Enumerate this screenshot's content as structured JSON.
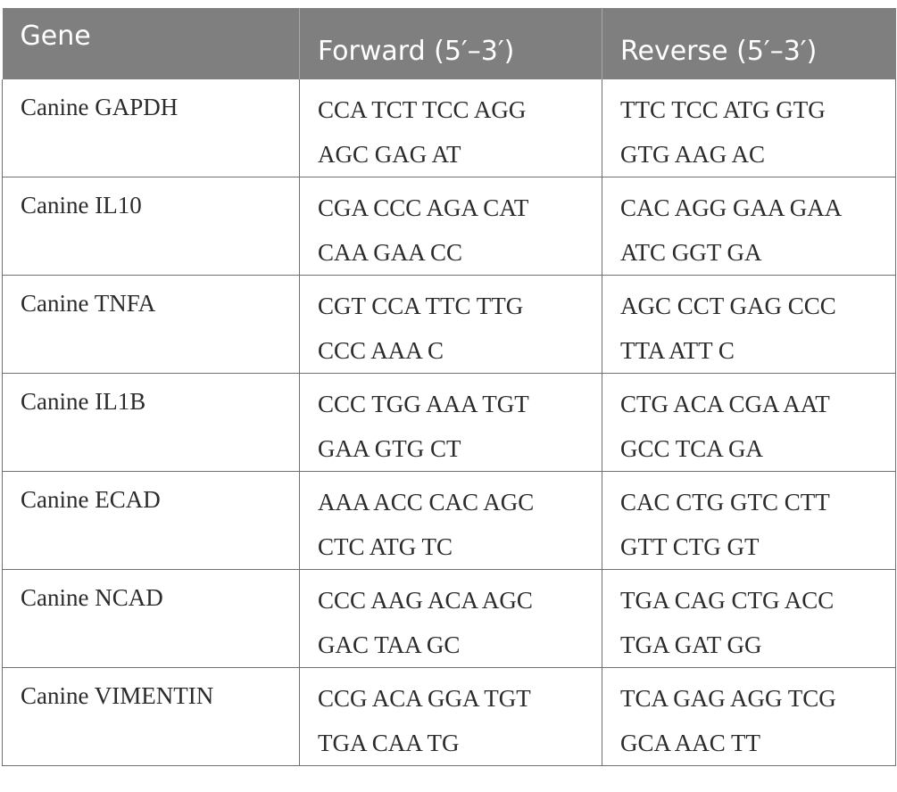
{
  "table": {
    "headers": {
      "gene": "Gene",
      "forward": "Forward (5′–3′)",
      "reverse": "Reverse (5′–3′)"
    },
    "rows": [
      {
        "gene": "Canine GAPDH",
        "forward": [
          "CCA TCT TCC AGG",
          "AGC GAG AT"
        ],
        "reverse": [
          "TTC TCC ATG GTG",
          "GTG AAG AC"
        ]
      },
      {
        "gene": "Canine IL10",
        "forward": [
          "CGA CCC AGA CAT",
          "CAA GAA CC"
        ],
        "reverse": [
          "CAC AGG GAA GAA",
          "ATC GGT GA"
        ]
      },
      {
        "gene": "Canine TNFA",
        "forward": [
          "CGT CCA TTC TTG",
          "CCC AAA C"
        ],
        "reverse": [
          "AGC CCT GAG CCC",
          "TTA ATT C"
        ]
      },
      {
        "gene": "Canine IL1B",
        "forward": [
          "CCC TGG AAA TGT",
          "GAA GTG CT"
        ],
        "reverse": [
          "CTG ACA CGA AAT",
          "GCC TCA GA"
        ]
      },
      {
        "gene": "Canine ECAD",
        "forward": [
          "AAA ACC CAC AGC",
          "CTC ATG TC"
        ],
        "reverse": [
          "CAC CTG GTC CTT",
          "GTT CTG GT"
        ]
      },
      {
        "gene": "Canine NCAD",
        "forward": [
          "CCC AAG ACA AGC",
          "GAC TAA GC"
        ],
        "reverse": [
          "TGA CAG CTG ACC",
          "TGA GAT GG"
        ]
      },
      {
        "gene": "Canine VIMENTIN",
        "forward": [
          "CCG ACA GGA TGT",
          "TGA CAA TG"
        ],
        "reverse": [
          "TCA GAG AGG TCG",
          "GCA AAC TT"
        ]
      }
    ]
  }
}
